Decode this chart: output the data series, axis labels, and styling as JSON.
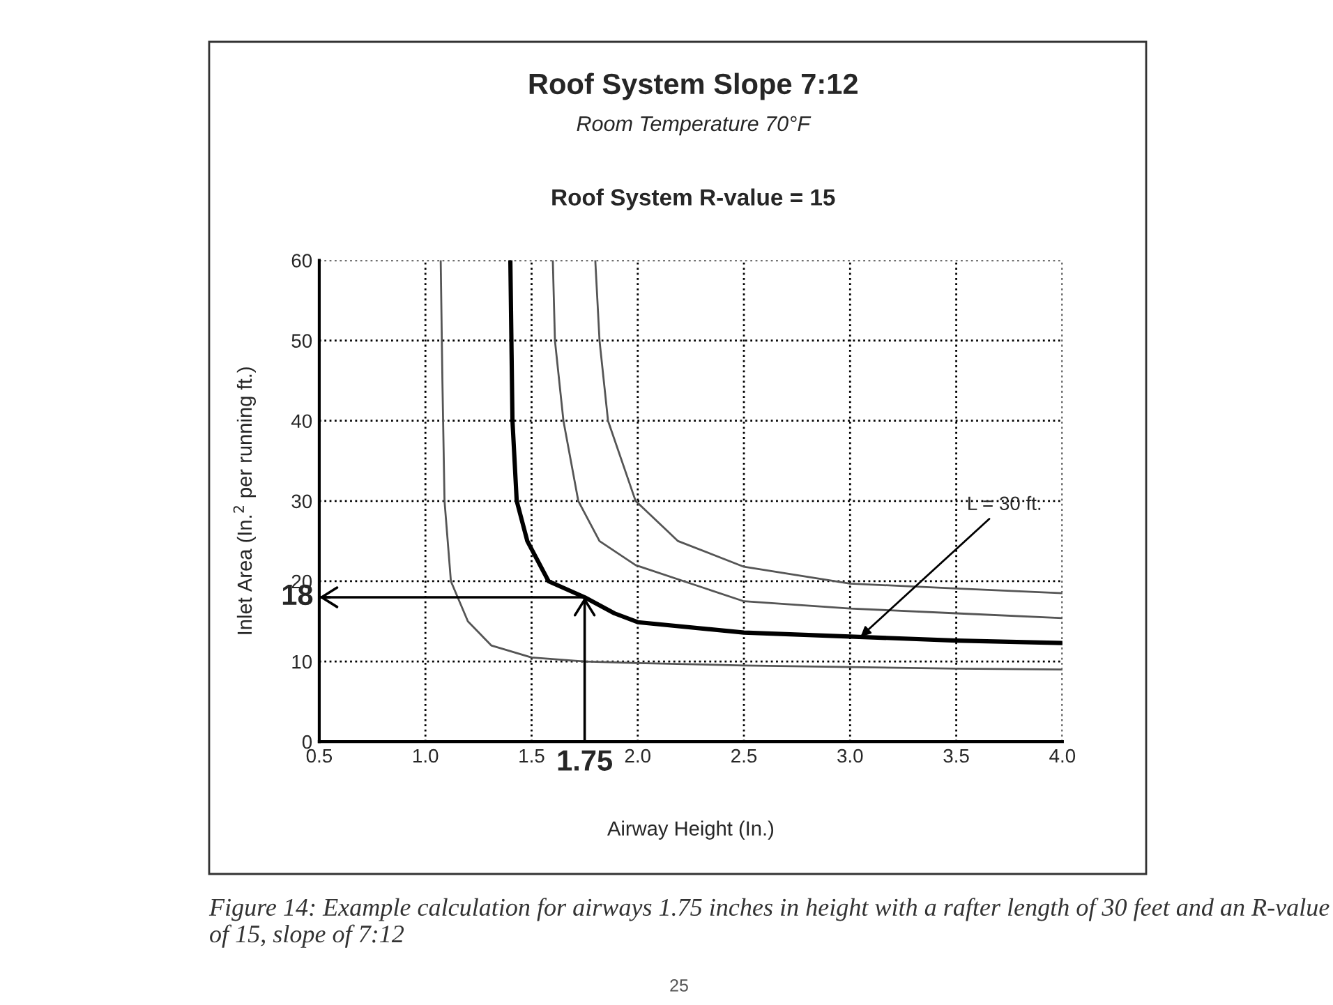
{
  "chart_data": {
    "type": "line",
    "title": "Roof System Slope 7:12",
    "subtitle": "Room Temperature 70°F",
    "xlabel": "Airway Height (In.)",
    "ylabel": "Inlet Area (In.$^{2}$ per running ft.)",
    "xlim": [
      0.5,
      4.0
    ],
    "xticks": [
      {
        "value": 0.5,
        "label": "0.5"
      },
      {
        "value": 1.0,
        "label": "1.0"
      },
      {
        "value": 1.5,
        "label": "1.5"
      },
      {
        "value": 2.0,
        "label": "2.0"
      },
      {
        "value": 2.5,
        "label": "2.5"
      },
      {
        "value": 3.0,
        "label": "3.0"
      },
      {
        "value": 3.5,
        "label": "3.5"
      },
      {
        "value": 4.0,
        "label": "4.0"
      }
    ],
    "ylim": [
      0,
      60
    ],
    "yticks": [
      0,
      10,
      20,
      30,
      40,
      50,
      60
    ],
    "grid": true,
    "marker": "none",
    "line_style": "solid",
    "series": [
      {
        "color": "#555555",
        "x": [
          1.072,
          1.08,
          1.09,
          1.12,
          1.2,
          1.31,
          1.5,
          1.75,
          2.0,
          2.5,
          3.0,
          3.5,
          4.0
        ],
        "values": [
          60,
          45,
          30,
          20,
          15,
          12,
          10.5,
          10,
          9.8,
          9.5,
          9.3,
          9.1,
          9.0
        ]
      },
      {
        "color": "#000000",
        "x": [
          1.4,
          1.41,
          1.43,
          1.48,
          1.58,
          1.75,
          1.89,
          2.0,
          2.5,
          3.0,
          3.5,
          4.0
        ],
        "values": [
          60,
          40,
          30,
          25,
          20,
          18,
          16,
          14.9,
          13.6,
          13.1,
          12.6,
          12.3
        ]
      },
      {
        "color": "#555555",
        "x": [
          1.6,
          1.61,
          1.65,
          1.72,
          1.82,
          1.99,
          2.5,
          3.0,
          3.5,
          4.0
        ],
        "values": [
          60,
          50,
          40,
          30,
          25,
          22,
          17.5,
          16.6,
          16.0,
          15.4
        ]
      },
      {
        "color": "#555555",
        "x": [
          1.8,
          1.82,
          1.86,
          1.99,
          2.19,
          2.5,
          3.0,
          3.5,
          4.0
        ],
        "values": [
          60,
          50,
          40,
          30,
          25,
          21.8,
          19.7,
          19.1,
          18.5
        ]
      }
    ],
    "ref_lines": [
      {
        "axis": "y",
        "value": 18,
        "label": "18"
      },
      {
        "axis": "x",
        "value": 1.75,
        "label": "1.75"
      }
    ],
    "annotations": [
      "Roof System R-value = 15",
      {
        "text": "L = 30 ft.",
        "x": 3.05,
        "y": 13.1
      },
      "Figure 14: Example calculation for airways 1.75 inches in height with a rafter length of 30 feet and an R-value of 15, slope of 7:12",
      "25"
    ]
  }
}
